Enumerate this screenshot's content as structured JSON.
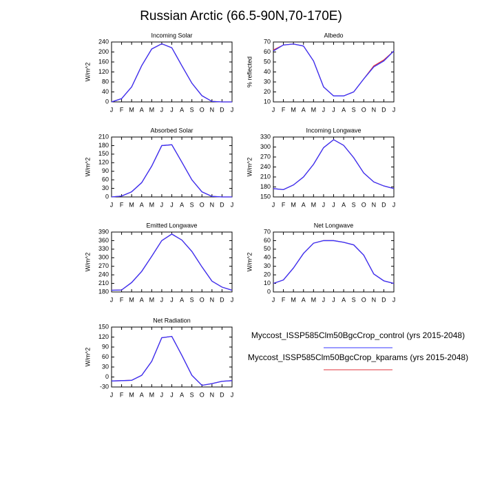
{
  "title": "Russian Arctic (66.5-90N,70-170E)",
  "legend": [
    {
      "name": "Myccost_ISSP585Clm50BgcCrop_control (yrs 2015-2048)",
      "color": "#3333ff"
    },
    {
      "name": "Myccost_ISSP585Clm50BgcCrop_kparams (yrs 2015-2048)",
      "color": "#e0303a"
    }
  ],
  "chart_data": [
    {
      "type": "line",
      "title": "Incoming Solar",
      "ylabel": "W/m^2",
      "categories": [
        "J",
        "F",
        "M",
        "A",
        "M",
        "J",
        "J",
        "A",
        "S",
        "O",
        "N",
        "D",
        "J"
      ],
      "series": [
        {
          "values": [
            0,
            13,
            60,
            145,
            212,
            233,
            217,
            145,
            75,
            25,
            2,
            0,
            0
          ]
        },
        {
          "values": [
            0,
            13,
            60,
            145,
            212,
            233,
            217,
            145,
            75,
            25,
            2,
            0,
            0
          ]
        }
      ],
      "ylim": [
        0,
        240
      ],
      "yticks": [
        0,
        40,
        80,
        120,
        160,
        200,
        240
      ]
    },
    {
      "type": "line",
      "title": "Albedo",
      "ylabel": "% reflected",
      "categories": [
        "J",
        "F",
        "M",
        "A",
        "M",
        "J",
        "J",
        "A",
        "S",
        "O",
        "N",
        "D",
        "J"
      ],
      "series": [
        {
          "values": [
            61,
            67,
            68,
            66,
            51,
            25,
            16,
            16,
            20,
            33,
            45,
            51,
            61
          ]
        },
        {
          "values": [
            62,
            67,
            68,
            66,
            51,
            25,
            16,
            16,
            20,
            33,
            46,
            52,
            61
          ]
        }
      ],
      "ylim": [
        10,
        70
      ],
      "yticks": [
        10,
        20,
        30,
        40,
        50,
        60,
        70
      ]
    },
    {
      "type": "line",
      "title": "Absorbed Solar",
      "ylabel": "W/m^2",
      "categories": [
        "J",
        "F",
        "M",
        "A",
        "M",
        "J",
        "J",
        "A",
        "S",
        "O",
        "N",
        "D",
        "J"
      ],
      "series": [
        {
          "values": [
            0,
            3,
            18,
            50,
            108,
            180,
            183,
            122,
            60,
            18,
            2,
            0,
            0
          ]
        },
        {
          "values": [
            0,
            3,
            18,
            50,
            108,
            180,
            183,
            122,
            60,
            18,
            2,
            0,
            0
          ]
        }
      ],
      "ylim": [
        0,
        210
      ],
      "yticks": [
        0,
        30,
        60,
        90,
        120,
        150,
        180,
        210
      ]
    },
    {
      "type": "line",
      "title": "Incoming Longwave",
      "ylabel": "W/m^2",
      "categories": [
        "J",
        "F",
        "M",
        "A",
        "M",
        "J",
        "J",
        "A",
        "S",
        "O",
        "N",
        "D",
        "J"
      ],
      "series": [
        {
          "values": [
            175,
            172,
            186,
            210,
            248,
            298,
            322,
            305,
            268,
            222,
            195,
            183,
            175
          ]
        },
        {
          "values": [
            175,
            172,
            186,
            210,
            248,
            298,
            322,
            305,
            268,
            222,
            195,
            183,
            175
          ]
        }
      ],
      "ylim": [
        150,
        330
      ],
      "yticks": [
        150,
        180,
        210,
        240,
        270,
        300,
        330
      ]
    },
    {
      "type": "line",
      "title": "Emitted Longwave",
      "ylabel": "W/m^2",
      "categories": [
        "J",
        "F",
        "M",
        "A",
        "M",
        "J",
        "J",
        "A",
        "S",
        "O",
        "N",
        "D",
        "J"
      ],
      "series": [
        {
          "values": [
            186,
            187,
            213,
            252,
            305,
            360,
            383,
            362,
            322,
            268,
            218,
            197,
            186
          ]
        },
        {
          "values": [
            186,
            187,
            213,
            252,
            305,
            360,
            383,
            362,
            322,
            268,
            218,
            197,
            186
          ]
        }
      ],
      "ylim": [
        180,
        390
      ],
      "yticks": [
        180,
        210,
        240,
        270,
        300,
        330,
        360,
        390
      ]
    },
    {
      "type": "line",
      "title": "Net Longwave",
      "ylabel": "W/m^2",
      "categories": [
        "J",
        "F",
        "M",
        "A",
        "M",
        "J",
        "J",
        "A",
        "S",
        "O",
        "N",
        "D",
        "J"
      ],
      "series": [
        {
          "values": [
            10,
            14,
            28,
            45,
            57,
            60,
            60,
            58,
            55,
            43,
            21,
            13,
            10
          ]
        },
        {
          "values": [
            10,
            14,
            28,
            45,
            57,
            60,
            60,
            58,
            55,
            43,
            21,
            13,
            10
          ]
        }
      ],
      "ylim": [
        0,
        70
      ],
      "yticks": [
        0,
        10,
        20,
        30,
        40,
        50,
        60,
        70
      ]
    },
    {
      "type": "line",
      "title": "Net Radiation",
      "ylabel": "W/m^2",
      "categories": [
        "J",
        "F",
        "M",
        "A",
        "M",
        "J",
        "J",
        "A",
        "S",
        "O",
        "N",
        "D",
        "J"
      ],
      "series": [
        {
          "values": [
            -12,
            -11,
            -10,
            5,
            47,
            118,
            122,
            65,
            5,
            -25,
            -20,
            -13,
            -11
          ]
        },
        {
          "values": [
            -12,
            -11,
            -10,
            5,
            47,
            118,
            122,
            65,
            5,
            -25,
            -20,
            -13,
            -11
          ]
        }
      ],
      "ylim": [
        -30,
        150
      ],
      "yticks": [
        -30,
        0,
        30,
        60,
        90,
        120,
        150
      ]
    }
  ]
}
